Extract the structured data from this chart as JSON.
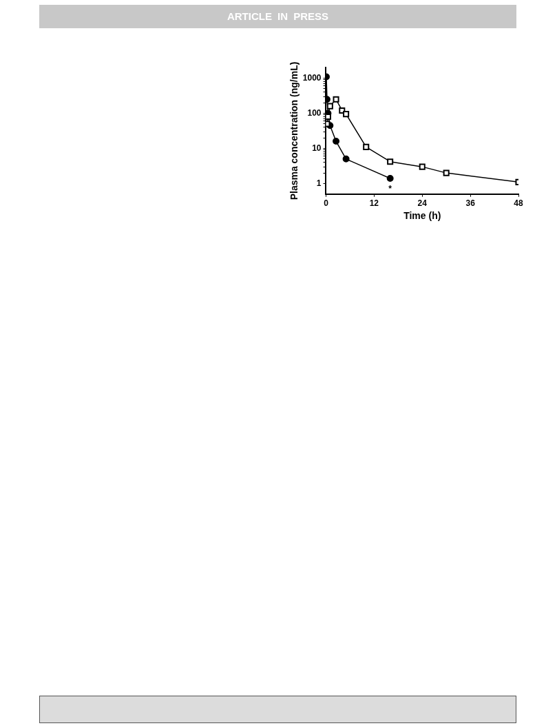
{
  "chart_data": {
    "type": "line",
    "xlabel": "Time (h)",
    "ylabel": "Plasma concentration (ng/mL)",
    "xlim": [
      0,
      48
    ],
    "xticks": [
      0,
      12,
      24,
      36,
      48
    ],
    "ylim": [
      0.5,
      2000
    ],
    "yticks": [
      1,
      {
        "value": 2,
        "label": null
      },
      {
        "value": 3,
        "label": null
      },
      {
        "value": 4,
        "label": null
      },
      {
        "value": 5,
        "label": null
      },
      {
        "value": 6,
        "label": null
      },
      {
        "value": 7,
        "label": null
      },
      {
        "value": 8,
        "label": null
      },
      {
        "value": 9,
        "label": null
      },
      10,
      {
        "value": 20,
        "label": null
      },
      {
        "value": 30,
        "label": null
      },
      {
        "value": 40,
        "label": null
      },
      {
        "value": 50,
        "label": null
      },
      {
        "value": 60,
        "label": null
      },
      {
        "value": 70,
        "label": null
      },
      {
        "value": 80,
        "label": null
      },
      {
        "value": 90,
        "label": null
      },
      100,
      {
        "value": 200,
        "label": null
      },
      {
        "value": 300,
        "label": null
      },
      {
        "value": 400,
        "label": null
      },
      {
        "value": 500,
        "label": null
      },
      {
        "value": 600,
        "label": null
      },
      {
        "value": 700,
        "label": null
      },
      {
        "value": 800,
        "label": null
      },
      {
        "value": 900,
        "label": null
      },
      1000
    ],
    "log": "y",
    "grid": false,
    "legend": false,
    "series": [
      {
        "color": "#000000",
        "marker": "circle",
        "x": [
          0.083,
          0.25,
          0.5,
          1,
          2.5,
          5,
          16
        ],
        "values": [
          1100,
          250,
          100,
          45,
          16,
          5,
          1.4
        ]
      },
      {
        "color": "#000000",
        "marker": "square",
        "x": [
          0.25,
          0.5,
          1,
          2.5,
          4,
          5,
          10,
          16,
          24,
          30,
          48
        ],
        "values": [
          50,
          80,
          160,
          250,
          120,
          95,
          11,
          4.2,
          3,
          2,
          1.1
        ]
      }
    ],
    "annotations": [
      "ARTICLE IN PRESS",
      {
        "text": "*",
        "x": 16,
        "y": 1.4
      }
    ]
  }
}
